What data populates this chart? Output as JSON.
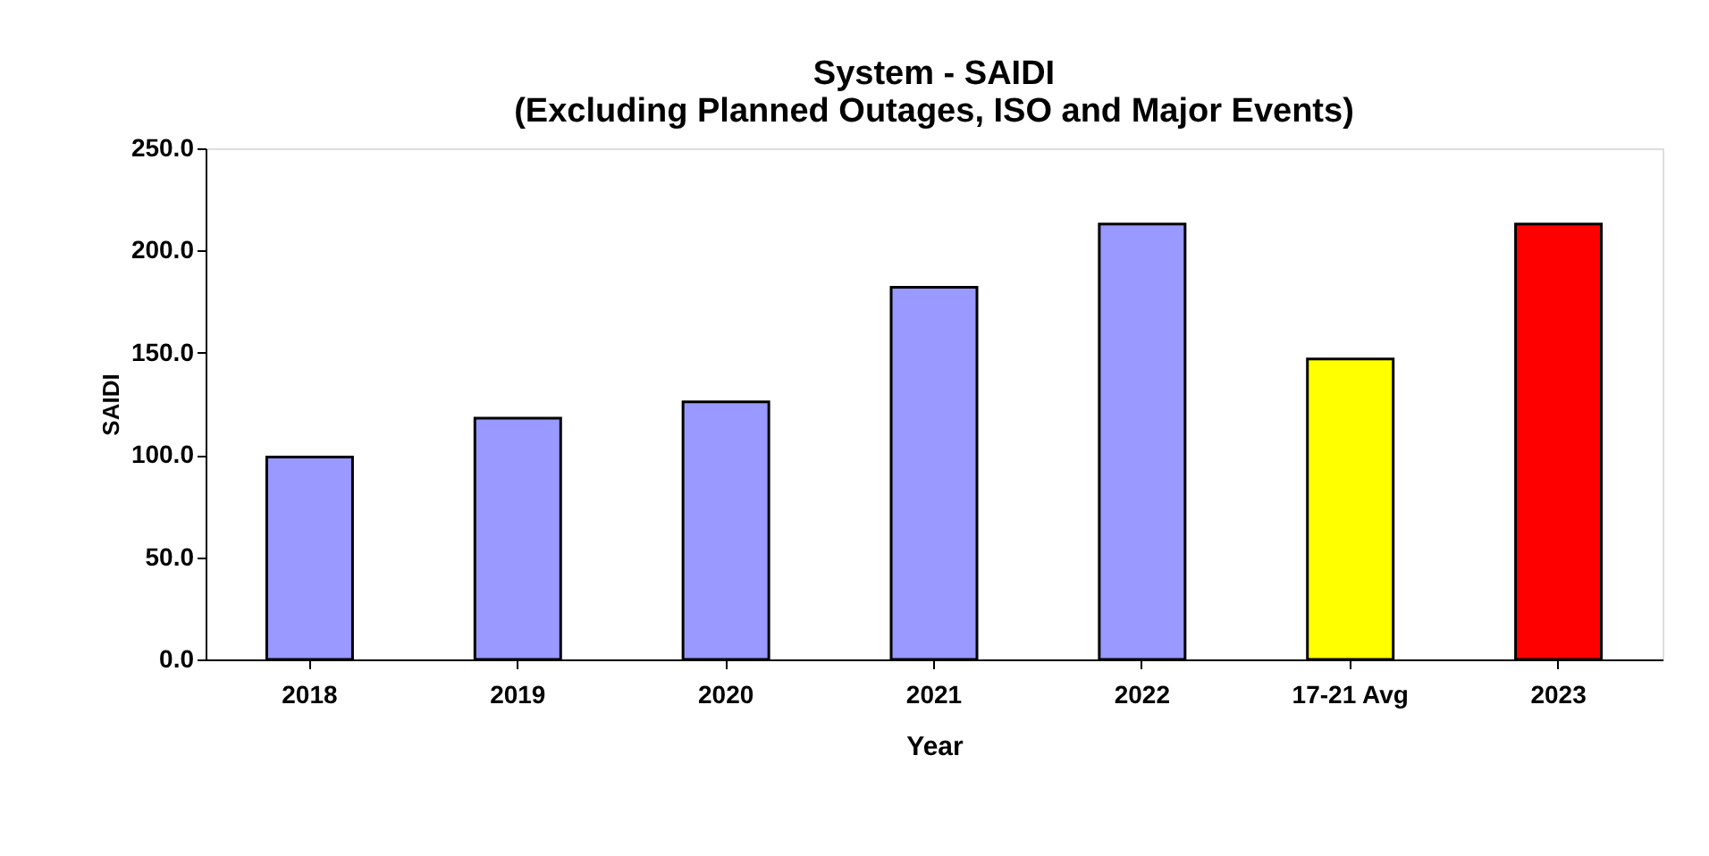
{
  "chart_data": {
    "type": "bar",
    "title": [
      "System - SAIDI",
      "(Excluding Planned Outages, ISO and Major Events)"
    ],
    "xlabel": "Year",
    "ylabel": "SAIDI",
    "categories": [
      "2018",
      "2019",
      "2020",
      "2021",
      "2022",
      "17-21 Avg",
      "2023"
    ],
    "values": [
      99,
      118,
      126,
      182,
      213,
      147,
      213
    ],
    "colors": [
      "#9999ff",
      "#9999ff",
      "#9999ff",
      "#9999ff",
      "#9999ff",
      "#ffff00",
      "#ff0000"
    ],
    "ylim": [
      0,
      250
    ],
    "yticks": [
      {
        "value": 0,
        "label": "0.0"
      },
      {
        "value": 50,
        "label": "50.0"
      },
      {
        "value": 100,
        "label": "100.0"
      },
      {
        "value": 150,
        "label": "150.0"
      },
      {
        "value": 200,
        "label": "200.0"
      },
      {
        "value": 250,
        "label": "250.0"
      }
    ],
    "grid": false
  }
}
